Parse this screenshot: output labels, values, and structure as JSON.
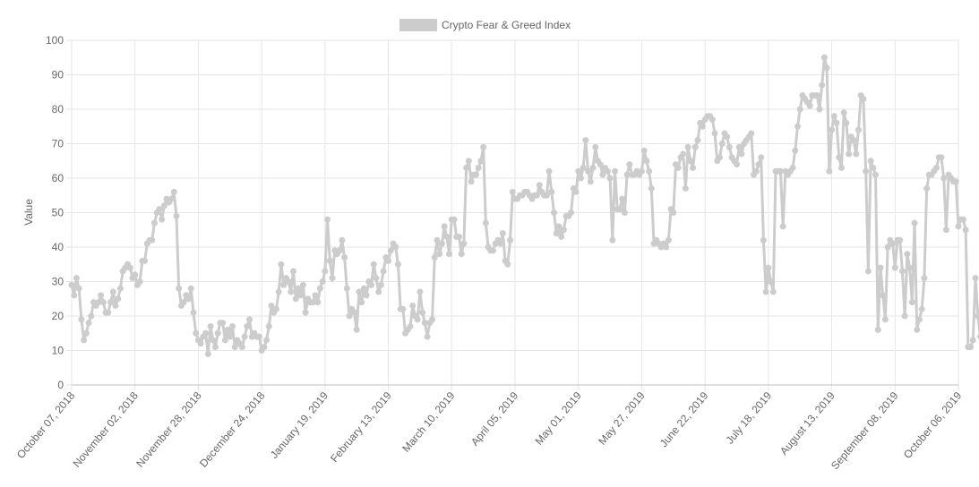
{
  "chart_data": {
    "type": "line",
    "legend": {
      "label": "Crypto Fear & Greed Index",
      "position": "top-center",
      "color": "#cccccc"
    },
    "ylabel": "Value",
    "xlabel": "",
    "ylim": [
      0,
      100
    ],
    "yticks": [
      0,
      10,
      20,
      30,
      40,
      50,
      60,
      70,
      80,
      90,
      100
    ],
    "grid": true,
    "colors": {
      "series": "#cccccc",
      "grid": "#e6e6e6",
      "text": "#666666"
    },
    "x_tick_labels": [
      "October 07, 2018",
      "November 02, 2018",
      "November 28, 2018",
      "December 24, 2018",
      "January 19, 2019",
      "February 13, 2019",
      "March 10, 2019",
      "April 05, 2019",
      "May 01, 2019",
      "May 27, 2019",
      "June 22, 2019",
      "July 18, 2019",
      "August 13, 2019",
      "September 08, 2019",
      "October 06, 2019"
    ],
    "series": [
      {
        "name": "Crypto Fear & Greed Index",
        "start_date": "2018-10-07",
        "values": [
          29,
          26,
          31,
          28,
          19,
          13,
          15,
          18,
          20,
          24,
          23,
          24,
          26,
          24,
          21,
          21,
          24,
          27,
          23,
          25,
          28,
          33,
          34,
          35,
          34,
          31,
          32,
          29,
          30,
          36,
          36,
          41,
          42,
          42,
          47,
          50,
          51,
          48,
          52,
          54,
          53,
          54,
          56,
          49,
          28,
          23,
          24,
          26,
          25,
          28,
          21,
          15,
          13,
          12,
          14,
          15,
          9,
          17,
          13,
          11,
          15,
          18,
          18,
          13,
          16,
          14,
          17,
          11,
          13,
          12,
          11,
          14,
          17,
          19,
          14,
          15,
          14,
          14,
          10,
          11,
          13,
          17,
          23,
          21,
          22,
          27,
          35,
          29,
          31,
          30,
          27,
          33,
          25,
          28,
          26,
          29,
          21,
          25,
          24,
          24,
          26,
          24,
          28,
          30,
          33,
          48,
          36,
          31,
          39,
          38,
          39,
          42,
          37,
          28,
          20,
          22,
          21,
          16,
          27,
          24,
          28,
          26,
          30,
          29,
          35,
          31,
          27,
          29,
          33,
          37,
          36,
          39,
          41,
          40,
          35,
          22,
          22,
          15,
          16,
          17,
          23,
          20,
          19,
          27,
          21,
          18,
          14,
          18,
          19,
          37,
          42,
          38,
          41,
          46,
          43,
          38,
          48,
          48,
          43,
          43,
          38,
          41,
          63,
          65,
          59,
          61,
          61,
          63,
          65,
          69,
          47,
          40,
          39,
          39,
          41,
          42,
          41,
          44,
          36,
          35,
          42,
          56,
          54,
          54,
          55,
          55,
          56,
          56,
          55,
          54,
          55,
          55,
          58,
          56,
          55,
          55,
          62,
          56,
          50,
          44,
          46,
          43,
          45,
          49,
          49,
          50,
          57,
          56,
          62,
          60,
          63,
          71,
          62,
          59,
          63,
          69,
          65,
          64,
          61,
          63,
          62,
          60,
          42,
          62,
          51,
          51,
          54,
          50,
          61,
          64,
          61,
          61,
          62,
          61,
          62,
          68,
          65,
          62,
          57,
          41,
          42,
          41,
          40,
          41,
          40,
          42,
          51,
          50,
          64,
          63,
          66,
          67,
          57,
          69,
          65,
          63,
          69,
          71,
          76,
          75,
          77,
          78,
          78,
          77,
          73,
          65,
          66,
          70,
          73,
          72,
          69,
          66,
          65,
          64,
          69,
          67,
          70,
          71,
          72,
          73,
          61,
          62,
          64,
          66,
          42,
          27,
          34,
          30,
          27,
          62,
          62,
          62,
          46,
          62,
          61,
          62,
          63,
          68,
          75,
          80,
          84,
          83,
          82,
          81,
          84,
          84,
          84,
          80,
          87,
          95,
          92,
          62,
          74,
          78,
          76,
          66,
          63,
          79,
          76,
          67,
          72,
          71,
          67,
          74,
          84,
          83,
          62,
          33,
          65,
          63,
          61,
          16,
          34,
          26,
          19,
          40,
          42,
          41,
          34,
          42,
          42,
          33,
          20,
          38,
          34,
          24,
          47,
          16,
          19,
          22,
          31,
          57,
          61,
          61,
          62,
          63,
          66,
          66,
          60,
          45,
          61,
          60,
          59,
          59,
          46,
          48,
          48,
          45,
          11,
          11,
          13,
          31,
          20,
          14,
          20,
          30,
          13,
          11,
          5,
          33,
          36,
          39,
          33,
          41,
          30,
          33,
          31,
          20,
          20,
          22,
          24,
          20,
          24,
          28,
          41,
          43,
          41,
          43,
          39,
          41,
          43,
          41,
          41,
          38,
          39,
          38,
          39,
          38,
          38,
          41,
          38,
          38,
          31,
          41,
          37,
          37,
          38,
          41,
          39,
          15,
          12,
          15,
          24,
          31,
          32,
          33,
          27,
          31,
          38,
          37,
          39,
          30,
          31,
          32
        ]
      }
    ]
  }
}
